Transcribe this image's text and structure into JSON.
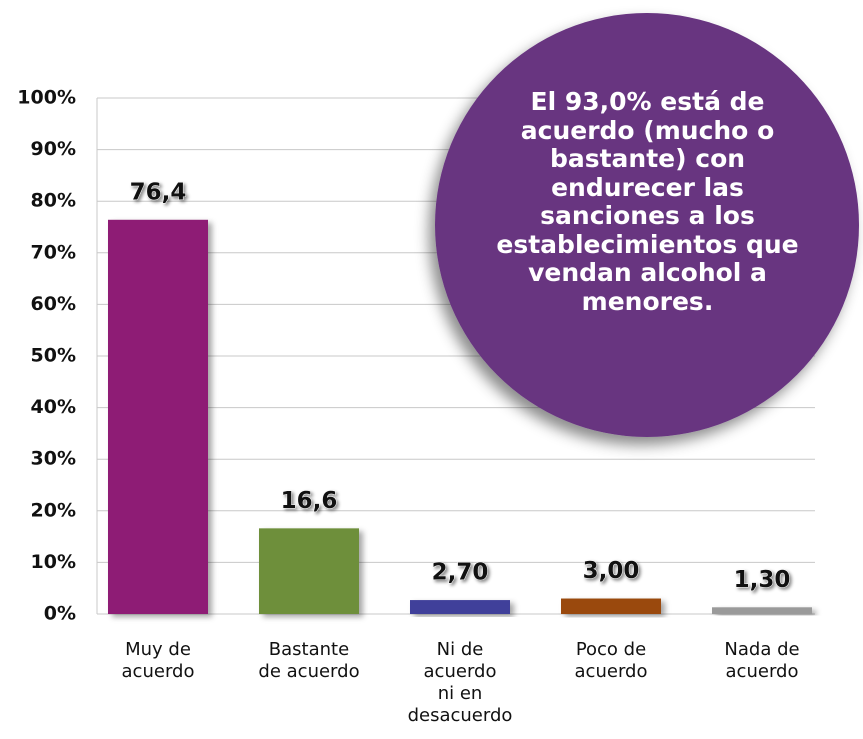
{
  "chart_data": {
    "type": "bar",
    "categories": [
      "Muy  de\nacuerdo",
      "Bastante\nde acuerdo",
      "Ni de\nacuerdo\nni en\ndesacuerdo",
      "Poco de\nacuerdo",
      "Nada de\nacuerdo"
    ],
    "values": [
      76.4,
      16.6,
      2.7,
      3.0,
      1.3
    ],
    "value_labels": [
      "76,4",
      "16,6",
      "2,70",
      "3,00",
      "1,30"
    ],
    "colors": [
      "#8e1f74",
      "#6e8f3a",
      "#40409a",
      "#9a4a0c",
      "#9a9a9a"
    ],
    "ylim": [
      0,
      100
    ],
    "yticks": [
      {
        "value": 0,
        "label": "0%"
      },
      {
        "value": 10,
        "label": "10%"
      },
      {
        "value": 20,
        "label": "20%"
      },
      {
        "value": 30,
        "label": "30%"
      },
      {
        "value": 40,
        "label": "40%"
      },
      {
        "value": 50,
        "label": "50%"
      },
      {
        "value": 60,
        "label": "60%"
      },
      {
        "value": 70,
        "label": "70%"
      },
      {
        "value": 80,
        "label": "80%"
      },
      {
        "value": 90,
        "label": "90%"
      },
      {
        "value": 100,
        "label": "100%"
      }
    ],
    "grid": true,
    "annotation": "El 93,0% está de\nacuerdo (mucho o\nbastante) con\nendurecer las\nsanciones a los\nestablecimientos que\nvendan alcohol a\nmenores."
  }
}
